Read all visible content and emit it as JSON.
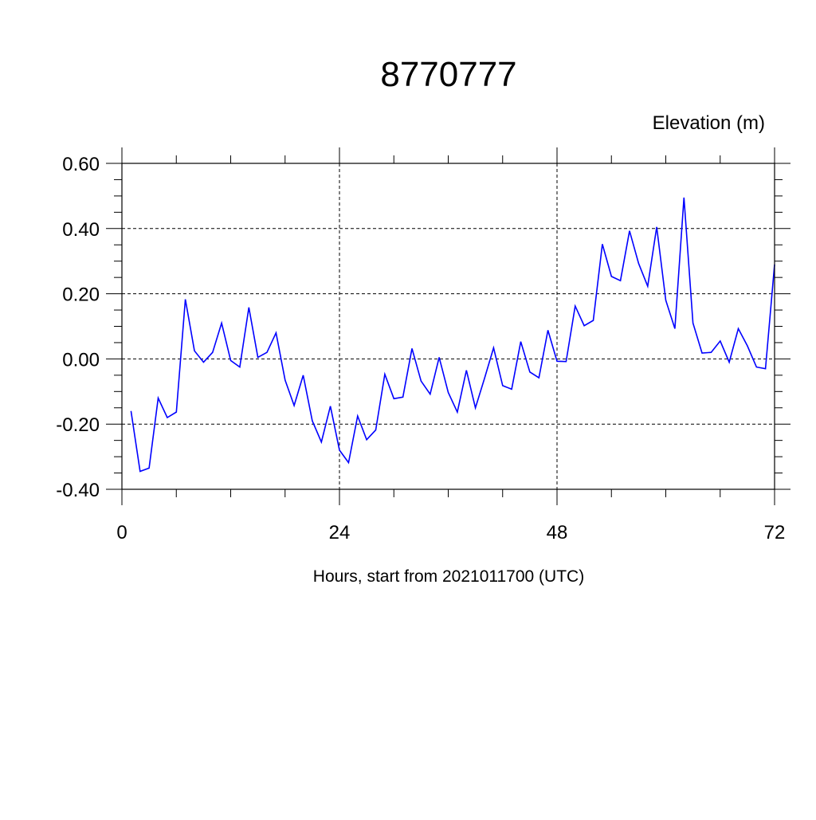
{
  "chart_data": {
    "type": "line",
    "title": "8770777",
    "ylabel": "Elevation (m)",
    "xlabel": "Hours, start from 2021011700 (UTC)",
    "xlim": [
      0,
      72
    ],
    "ylim": [
      -0.4,
      0.6
    ],
    "xticks": [
      0,
      24,
      48,
      72
    ],
    "xtick_labels": [
      "0",
      "24",
      "48",
      "72"
    ],
    "yticks": [
      -0.4,
      -0.2,
      0.0,
      0.2,
      0.4,
      0.6
    ],
    "ytick_labels": [
      "-0.40",
      "-0.20",
      "0.00",
      "0.20",
      "0.40",
      "0.60"
    ],
    "grid": true,
    "series": [
      {
        "color": "#0000ff",
        "x": [
          1,
          2,
          3,
          4,
          5,
          6,
          7,
          8,
          9,
          10,
          11,
          12,
          13,
          14,
          15,
          16,
          17,
          18,
          19,
          20,
          21,
          22,
          23,
          24,
          25,
          26,
          27,
          28,
          29,
          30,
          31,
          32,
          33,
          34,
          35,
          36,
          37,
          38,
          39,
          40,
          41,
          42,
          43,
          44,
          45,
          46,
          47,
          48,
          49,
          50,
          51,
          52,
          53,
          54,
          55,
          56,
          57,
          58,
          59,
          60,
          61,
          62,
          63,
          64,
          65,
          66,
          67,
          68,
          69,
          70,
          71,
          72
        ],
        "values": [
          -0.16,
          -0.345,
          -0.335,
          -0.12,
          -0.18,
          -0.163,
          0.183,
          0.025,
          -0.01,
          0.02,
          0.11,
          -0.005,
          -0.025,
          0.158,
          0.005,
          0.02,
          0.08,
          -0.065,
          -0.143,
          -0.05,
          -0.19,
          -0.255,
          -0.145,
          -0.28,
          -0.318,
          -0.175,
          -0.248,
          -0.218,
          -0.047,
          -0.122,
          -0.117,
          0.032,
          -0.068,
          -0.108,
          0.005,
          -0.103,
          -0.163,
          -0.035,
          -0.15,
          -0.06,
          0.034,
          -0.082,
          -0.093,
          0.053,
          -0.04,
          -0.058,
          0.088,
          -0.007,
          -0.008,
          0.162,
          0.102,
          0.118,
          0.352,
          0.253,
          0.24,
          0.393,
          0.293,
          0.223,
          0.405,
          0.18,
          0.093,
          0.495,
          0.11,
          0.018,
          0.02,
          0.055,
          -0.01,
          0.093,
          0.04,
          -0.025,
          -0.03,
          0.29
        ]
      }
    ]
  }
}
